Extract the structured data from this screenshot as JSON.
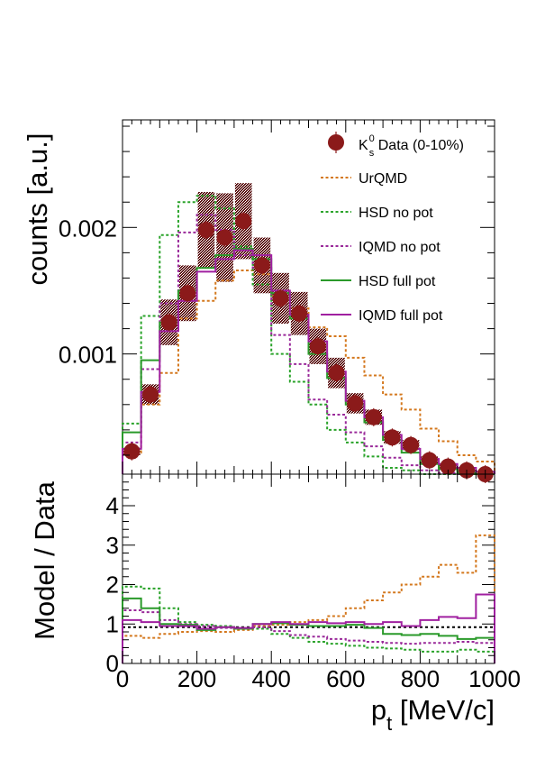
{
  "chart_data": [
    {
      "type": "step",
      "ylabel": "counts [a.u.]",
      "xlim": [
        0,
        1000
      ],
      "ylim": [
        5e-05,
        0.00285
      ],
      "y_ticks": [
        0.001,
        0.002
      ],
      "y_tick_labels": [
        "0.001",
        "0.002"
      ],
      "bin_edges": [
        0,
        50,
        100,
        150,
        200,
        250,
        300,
        350,
        400,
        450,
        500,
        550,
        600,
        650,
        700,
        750,
        800,
        850,
        900,
        950,
        1000
      ],
      "legend_position": "top-right",
      "data": {
        "name_main": "K",
        "name_sup": "0",
        "name_sub": "s",
        "name_rest": " Data (0-10%)",
        "color": "#8b1a1a",
        "x": [
          25,
          75,
          125,
          175,
          225,
          275,
          325,
          375,
          425,
          475,
          525,
          575,
          625,
          675,
          725,
          775,
          825,
          875,
          925,
          975
        ],
        "y": [
          0.00023,
          0.00068,
          0.00125,
          0.00148,
          0.00198,
          0.00192,
          0.00205,
          0.0017,
          0.00144,
          0.00132,
          0.00106,
          0.00085,
          0.00061,
          0.0005,
          0.00034,
          0.00028,
          0.00016,
          0.00011,
          8e-05,
          5e-05
        ],
        "sys": [
          3e-05,
          8e-05,
          0.00018,
          0.00022,
          0.0003,
          0.00035,
          0.0003,
          0.00022,
          0.0002,
          0.00017,
          0.00014,
          0.00012,
          8e-05,
          6e-05,
          5e-05,
          4e-05,
          3e-05,
          2e-05,
          2e-05,
          1e-05
        ]
      },
      "series": [
        {
          "name": "UrQMD",
          "color": "#d4781e",
          "dash": true,
          "values": [
            0.00022,
            0.0006,
            0.00085,
            0.00128,
            0.00142,
            0.00158,
            0.00166,
            0.00163,
            0.00146,
            0.00136,
            0.00121,
            0.00114,
            0.00097,
            0.00083,
            0.00068,
            0.00056,
            0.00041,
            0.00031,
            0.0002,
            0.00015
          ]
        },
        {
          "name": "HSD no pot",
          "color": "#2aa32a",
          "dash": true,
          "values": [
            0.00045,
            0.0013,
            0.00194,
            0.0022,
            0.00225,
            0.00215,
            0.00185,
            0.00155,
            0.001,
            0.00078,
            0.0006,
            0.0004,
            0.0003,
            0.00019,
            0.0001,
            8e-05,
            5e-05,
            3e-05,
            2e-05,
            1e-05
          ]
        },
        {
          "name": "IQMD no pot",
          "color": "#9a2a9a",
          "dash": true,
          "values": [
            0.0003,
            0.00088,
            0.0014,
            0.00196,
            0.0021,
            0.00198,
            0.00178,
            0.00168,
            0.00115,
            0.00092,
            0.00064,
            0.00052,
            0.00038,
            0.00027,
            0.00018,
            0.00012,
            8e-05,
            6e-05,
            4e-05,
            2e-05
          ]
        },
        {
          "name": "HSD full pot",
          "color": "#2a9a2a",
          "dash": false,
          "values": [
            0.00038,
            0.00095,
            0.00125,
            0.0015,
            0.00168,
            0.00178,
            0.00183,
            0.00175,
            0.00148,
            0.00128,
            0.001,
            0.00081,
            0.0006,
            0.00046,
            0.00032,
            0.00022,
            0.00013,
            9e-05,
            6e-05,
            4e-05
          ]
        },
        {
          "name": "IQMD full pot",
          "color": "#a020a0",
          "dash": false,
          "values": [
            0.00025,
            0.0007,
            0.00118,
            0.00142,
            0.00165,
            0.00175,
            0.00182,
            0.00178,
            0.0015,
            0.00131,
            0.0011,
            0.00086,
            0.00063,
            0.0005,
            0.00036,
            0.00025,
            0.00017,
            0.00013,
            0.0001,
            7e-05
          ]
        }
      ]
    },
    {
      "type": "step",
      "ylabel": "Model / Data",
      "xlabel_main": "p",
      "xlabel_sub": "t",
      "xlabel_rest": " [MeV/c]",
      "xlim": [
        0,
        1000
      ],
      "ylim": [
        0,
        4.8
      ],
      "x_ticks": [
        0,
        200,
        400,
        600,
        800,
        1000
      ],
      "x_tick_labels": [
        "0",
        "200",
        "400",
        "600",
        "800",
        "1000"
      ],
      "y_ticks": [
        0,
        1,
        2,
        3,
        4
      ],
      "y_tick_labels": [
        "0",
        "1",
        "2",
        "3",
        "4"
      ],
      "reference_line": 0.92,
      "series": [
        {
          "name": "UrQMD",
          "color": "#d4781e",
          "dash": true,
          "values": [
            0.7,
            0.65,
            0.75,
            0.8,
            0.82,
            0.8,
            0.85,
            0.95,
            0.98,
            1.05,
            1.1,
            1.2,
            1.4,
            1.6,
            1.8,
            2.0,
            2.2,
            2.5,
            2.3,
            3.25
          ]
        },
        {
          "name": "HSD no pot",
          "color": "#2aa32a",
          "dash": true,
          "values": [
            1.95,
            1.9,
            1.4,
            1.05,
            0.98,
            0.95,
            0.9,
            0.88,
            0.75,
            0.65,
            0.55,
            0.5,
            0.45,
            0.4,
            0.38,
            0.35,
            0.3,
            0.3,
            0.35,
            0.3
          ]
        },
        {
          "name": "IQMD no pot",
          "color": "#9a2a9a",
          "dash": true,
          "values": [
            1.35,
            1.3,
            1.1,
            1.0,
            0.95,
            0.9,
            0.88,
            0.92,
            0.82,
            0.72,
            0.68,
            0.62,
            0.58,
            0.55,
            0.52,
            0.5,
            0.52,
            0.52,
            0.55,
            0.52
          ]
        },
        {
          "name": "HSD full pot",
          "color": "#2a9a2a",
          "dash": false,
          "values": [
            1.65,
            1.4,
            1.0,
            0.98,
            0.85,
            0.92,
            0.88,
            1.0,
            1.02,
            0.98,
            0.95,
            0.95,
            0.98,
            0.9,
            0.75,
            0.72,
            0.75,
            0.7,
            0.62,
            0.65
          ]
        },
        {
          "name": "IQMD full pot",
          "color": "#a020a0",
          "dash": false,
          "values": [
            1.1,
            1.05,
            0.95,
            0.95,
            0.88,
            0.92,
            0.9,
            1.0,
            1.05,
            1.0,
            1.05,
            1.02,
            1.05,
            1.0,
            1.05,
            0.95,
            1.1,
            1.18,
            1.15,
            1.75
          ]
        }
      ]
    }
  ]
}
